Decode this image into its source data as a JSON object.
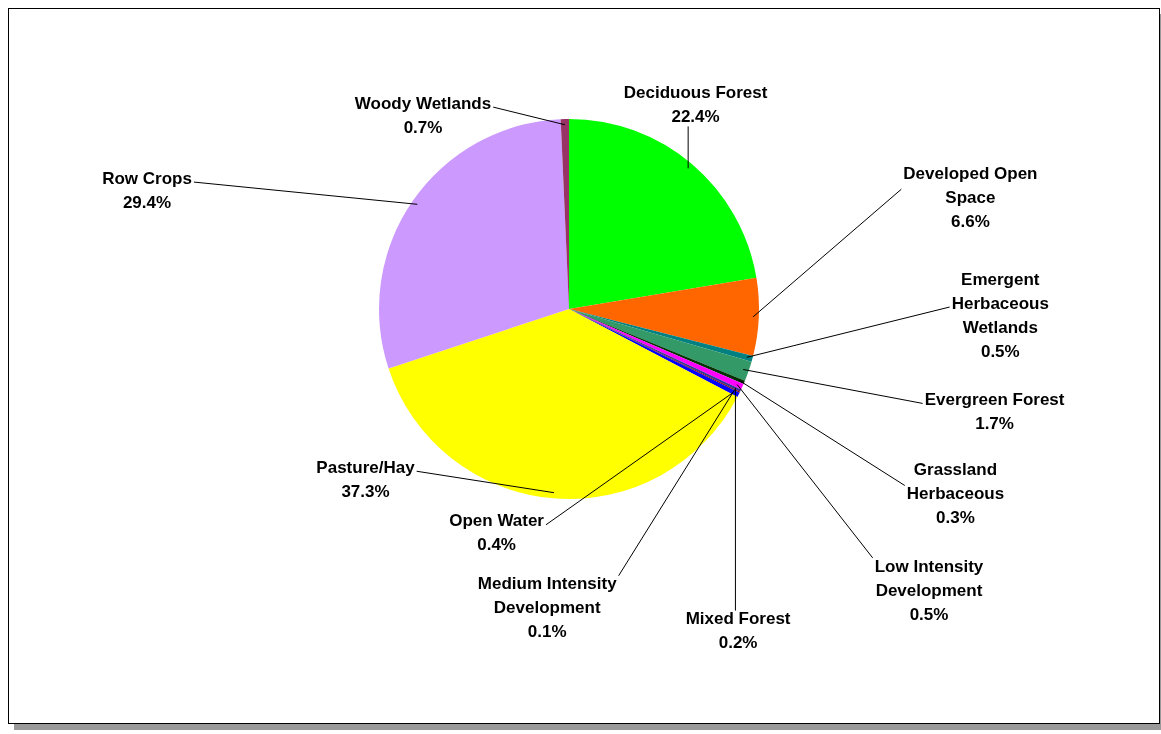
{
  "chart_data": {
    "type": "pie",
    "categories": [
      "Deciduous Forest",
      "Developed Open Space",
      "Emergent Herbaceous Wetlands",
      "Evergreen Forest",
      "Grassland Herbaceous",
      "Low Intensity Development",
      "Mixed Forest",
      "Medium Intensity Development",
      "Open Water",
      "Pasture/Hay",
      "Row Crops",
      "Woody Wetlands"
    ],
    "values": [
      22.4,
      6.6,
      0.5,
      1.7,
      0.3,
      0.5,
      0.2,
      0.1,
      0.4,
      37.3,
      29.4,
      0.7
    ],
    "value_labels": [
      "22.4%",
      "6.6%",
      "0.5%",
      "1.7%",
      "0.3%",
      "0.5%",
      "0.2%",
      "0.1%",
      "0.4%",
      "37.3%",
      "29.4%",
      "0.7%"
    ],
    "colors": [
      "#00ff00",
      "#ff6600",
      "#008080",
      "#339966",
      "#003300",
      "#ff00ff",
      "#333399",
      "#800000",
      "#0000ff",
      "#ffff00",
      "#cc99ff",
      "#993366"
    ]
  }
}
